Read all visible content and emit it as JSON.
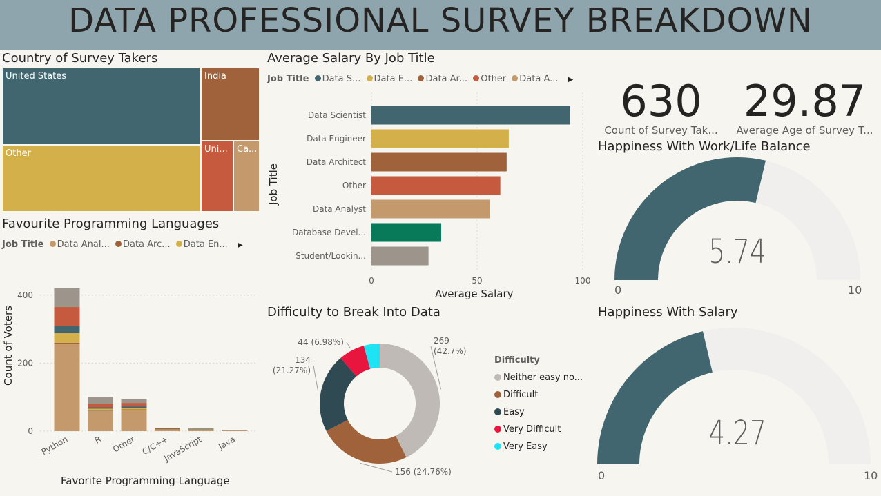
{
  "title": "DATA PROFESSIONAL SURVEY BREAKDOWN",
  "country": {
    "title": "Country of Survey Takers",
    "cells": [
      {
        "label": "United States",
        "color": "#41666f"
      },
      {
        "label": "India",
        "color": "#a0623a"
      },
      {
        "label": "Other",
        "color": "#d3b04a"
      },
      {
        "label": "Uni...",
        "color": "#c55a3f"
      },
      {
        "label": "Ca...",
        "color": "#c49a6c"
      }
    ]
  },
  "languages": {
    "title": "Favourite Programming Languages",
    "legend_title": "Job Title",
    "legend": [
      {
        "label": "Data Anal...",
        "color": "#c49a6c"
      },
      {
        "label": "Data Arc...",
        "color": "#a0623a"
      },
      {
        "label": "Data En...",
        "color": "#d3b04a"
      }
    ],
    "arrow": "▶",
    "ylabel": "Count of Voters",
    "xlabel": "Favorite Programming Language"
  },
  "salary": {
    "title": "Average Salary By Job Title",
    "legend_title": "Job Title",
    "legend": [
      {
        "label": "Data S...",
        "color": "#41666f"
      },
      {
        "label": "Data E...",
        "color": "#d3b04a"
      },
      {
        "label": "Data Ar...",
        "color": "#a0623a"
      },
      {
        "label": "Other",
        "color": "#c55a3f"
      },
      {
        "label": "Data A...",
        "color": "#c49a6c"
      }
    ],
    "arrow": "▶",
    "ylabel": "Job Title",
    "xlabel": "Average Salary"
  },
  "kpis": [
    {
      "value": "630",
      "label": "Count of Survey Tak..."
    },
    {
      "value": "29.87",
      "label": "Average Age of Survey T..."
    }
  ],
  "gauges": [
    {
      "title": "Happiness With Work/Life Balance",
      "min_label": "0",
      "max_label": "10",
      "display": "5.74",
      "value": 5.74,
      "min": 0,
      "max": 10,
      "fill": "#41666f",
      "track": "#f0efed"
    },
    {
      "title": "Happiness With Salary",
      "min_label": "0",
      "max_label": "10",
      "display": "4.27",
      "value": 4.27,
      "min": 0,
      "max": 10,
      "fill": "#41666f",
      "track": "#f0efed"
    }
  ],
  "difficulty": {
    "title": "Difficulty to Break Into Data",
    "legend_title": "Difficulty",
    "legend": [
      {
        "label": "Neither easy no...",
        "color": "#bfbab5"
      },
      {
        "label": "Difficult",
        "color": "#a0623a"
      },
      {
        "label": "Easy",
        "color": "#2f4a52"
      },
      {
        "label": "Very Difficult",
        "color": "#e8163f"
      },
      {
        "label": "Very Easy",
        "color": "#1ee3f2"
      }
    ]
  },
  "chart_data": [
    {
      "type": "treemap",
      "title": "Country of Survey Takers",
      "categories": [
        "United States",
        "India",
        "Other",
        "Uni...",
        "Ca..."
      ]
    },
    {
      "type": "bar",
      "stacked": true,
      "orientation": "vertical",
      "title": "Favourite Programming Languages",
      "xlabel": "Favorite Programming Language",
      "ylabel": "Count of Voters",
      "categories": [
        "Python",
        "R",
        "Other",
        "C/C++",
        "JavaScript",
        "Java"
      ],
      "ylim": [
        0,
        430
      ],
      "yticks": [
        0,
        200,
        400
      ],
      "series": [
        {
          "name": "Data Anal...",
          "color": "#c49a6c",
          "values": [
            256,
            60,
            62,
            5,
            5,
            2
          ]
        },
        {
          "name": "Data Arc...",
          "color": "#a0623a",
          "values": [
            4,
            2,
            2,
            1,
            0,
            0
          ]
        },
        {
          "name": "Data En...",
          "color": "#d3b04a",
          "values": [
            28,
            4,
            4,
            1,
            1,
            0
          ]
        },
        {
          "color": "#41666f",
          "values": [
            22,
            4,
            4,
            1,
            1,
            0
          ]
        },
        {
          "color": "#c55a3f",
          "values": [
            55,
            11,
            11,
            1,
            0,
            0
          ]
        },
        {
          "color": "#9d948b",
          "values": [
            55,
            20,
            12,
            1,
            1,
            1
          ]
        }
      ]
    },
    {
      "type": "bar",
      "orientation": "horizontal",
      "title": "Average Salary By Job Title",
      "xlabel": "Average Salary",
      "ylabel": "Job Title",
      "categories": [
        "Data Scientist",
        "Data Engineer",
        "Data Architect",
        "Other",
        "Data Analyst",
        "Database Devel...",
        "Student/Lookin..."
      ],
      "values": [
        94,
        65,
        64,
        61,
        56,
        33,
        27
      ],
      "colors": [
        "#41666f",
        "#d3b04a",
        "#a0623a",
        "#c55a3f",
        "#c49a6c",
        "#087a59",
        "#9d948b"
      ],
      "xlim": [
        0,
        100
      ],
      "xticks": [
        0,
        50,
        100
      ]
    },
    {
      "type": "pie",
      "donut": true,
      "title": "Difficulty to Break Into Data",
      "categories": [
        "Neither easy no...",
        "Difficult",
        "Easy",
        "Very Difficult",
        "Very Easy"
      ],
      "values": [
        269,
        156,
        134,
        44,
        27
      ],
      "percent_labels": [
        "269 (42.7%)",
        "156 (24.76%)",
        "134 (21.27%)",
        "44 (6.98%)",
        ""
      ],
      "colors": [
        "#bfbab5",
        "#a0623a",
        "#2f4a52",
        "#e8163f",
        "#1ee3f2"
      ]
    }
  ]
}
